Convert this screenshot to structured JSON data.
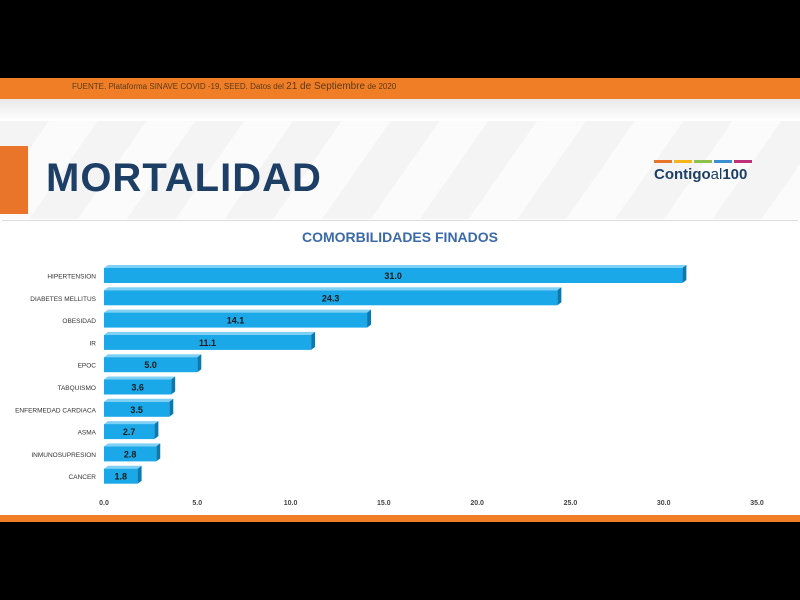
{
  "source_text": "FUENTE. Plataforma SINAVE COVID -19, SEED. Datos del",
  "source_date": "21 de Septiembre",
  "source_year": " de 2020",
  "title": "MORTALIDAD",
  "logo": {
    "main": "Contigo",
    "mid": "al",
    "num": "100"
  },
  "colors": {
    "orange": "#f07e26",
    "navy": "#1d3f66",
    "bar": "#1aa8e8",
    "bar_dark": "#0b79b0"
  },
  "chart_data": {
    "type": "bar",
    "orientation": "horizontal",
    "title": "COMORBILIDADES FINADOS",
    "categories": [
      "HIPERTENSION",
      "DIABETES MELLITUS",
      "OBESIDAD",
      "IR",
      "EPOC",
      "TABQUISMO",
      "ENFERMEDAD CARDIACA",
      "ASMA",
      "INMUNOSUPRESION",
      "CANCER"
    ],
    "values": [
      31.0,
      24.3,
      14.1,
      11.1,
      5.0,
      3.6,
      3.5,
      2.7,
      2.8,
      1.8
    ],
    "value_labels": [
      "31.0",
      "24.3",
      "14.1",
      "11.1",
      "5.0",
      "3.6",
      "3.5",
      "2.7",
      "2.8",
      "1.8"
    ],
    "xlim": [
      0,
      35
    ],
    "xticks": [
      "0.0",
      "5.0",
      "10.0",
      "15.0",
      "20.0",
      "25.0",
      "30.0",
      "35.0"
    ],
    "grid": false,
    "legend": "none"
  }
}
